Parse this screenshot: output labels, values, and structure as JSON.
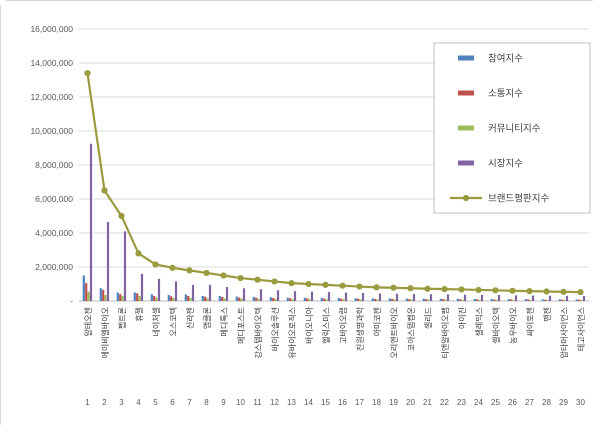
{
  "chart_data": {
    "type": "bar",
    "title": "",
    "xlabel": "",
    "ylabel": "",
    "categories": [
      "알테오젠",
      "에이비엘바이오",
      "펩트론",
      "휴젤",
      "네이처셀",
      "오스코텍",
      "신라젠",
      "앱클론",
      "메디톡스",
      "메디포스트",
      "강스템바이오텍",
      "바이오솔루션",
      "유바이오로직스",
      "바이오니아",
      "헬릭스미스",
      "고바이오랩",
      "진원생명과학",
      "아미코젠",
      "오리엔트바이오",
      "코아스템켐온",
      "셀리드",
      "티앤알바이오팹",
      "아이진",
      "셀레믹스",
      "셀바이오텍",
      "농우바이오",
      "싸이토젠",
      "팬젠",
      "압타머사이언스",
      "테고사이언스"
    ],
    "rank_labels": [
      "1",
      "2",
      "3",
      "4",
      "5",
      "6",
      "7",
      "8",
      "9",
      "10",
      "11",
      "12",
      "13",
      "14",
      "15",
      "16",
      "17",
      "18",
      "19",
      "20",
      "21",
      "22",
      "23",
      "24",
      "25",
      "26",
      "27",
      "28",
      "29",
      "30"
    ],
    "series": [
      {
        "name": "참여지수",
        "kind": "bar",
        "color": "#4F81BD",
        "values": [
          1500000,
          750000,
          500000,
          500000,
          400000,
          350000,
          380000,
          300000,
          300000,
          260000,
          240000,
          220000,
          200000,
          190000,
          180000,
          170000,
          160000,
          150000,
          150000,
          140000,
          140000,
          130000,
          130000,
          120000,
          120000,
          110000,
          110000,
          100000,
          100000,
          90000
        ]
      },
      {
        "name": "소통지수",
        "kind": "bar",
        "color": "#C0504D",
        "values": [
          1050000,
          650000,
          400000,
          450000,
          300000,
          280000,
          300000,
          250000,
          240000,
          210000,
          190000,
          180000,
          160000,
          150000,
          140000,
          140000,
          130000,
          120000,
          120000,
          110000,
          110000,
          110000,
          100000,
          100000,
          90000,
          90000,
          90000,
          80000,
          80000,
          80000
        ]
      },
      {
        "name": "커뮤니티지수",
        "kind": "bar",
        "color": "#9BBB59",
        "values": [
          550000,
          350000,
          300000,
          300000,
          200000,
          180000,
          180000,
          150000,
          150000,
          140000,
          130000,
          120000,
          110000,
          110000,
          100000,
          100000,
          90000,
          90000,
          90000,
          80000,
          80000,
          80000,
          80000,
          70000,
          70000,
          70000,
          60000,
          60000,
          60000,
          60000
        ]
      },
      {
        "name": "시장지수",
        "kind": "bar",
        "color": "#8064A2",
        "values": [
          9250000,
          4650000,
          4100000,
          1600000,
          1300000,
          1150000,
          950000,
          950000,
          820000,
          750000,
          690000,
          630000,
          580000,
          550000,
          520000,
          500000,
          470000,
          440000,
          430000,
          410000,
          400000,
          390000,
          370000,
          360000,
          350000,
          330000,
          320000,
          310000,
          300000,
          290000
        ]
      },
      {
        "name": "브랜드평판지수",
        "kind": "line",
        "color": "#9A9A3E",
        "values": [
          13400000,
          6500000,
          5000000,
          2800000,
          2150000,
          1950000,
          1800000,
          1650000,
          1500000,
          1350000,
          1250000,
          1150000,
          1050000,
          1000000,
          950000,
          900000,
          850000,
          800000,
          780000,
          750000,
          720000,
          700000,
          680000,
          650000,
          630000,
          600000,
          580000,
          560000,
          540000,
          520000
        ]
      }
    ],
    "ylim": [
      0,
      16000000
    ],
    "ytick_step": 2000000,
    "ytick_labels": [
      "-",
      "2,000,000",
      "4,000,000",
      "6,000,000",
      "8,000,000",
      "10,000,000",
      "12,000,000",
      "14,000,000",
      "16,000,000"
    ],
    "grid": true,
    "legend_position": "top-right",
    "colors": {
      "gridline": "#D9D9D9",
      "axis": "#BFBFBF",
      "tick_text": "#595959",
      "category_text": "#404040",
      "legend_border": "#BFBFBF",
      "background": "#FFFFFF"
    }
  }
}
